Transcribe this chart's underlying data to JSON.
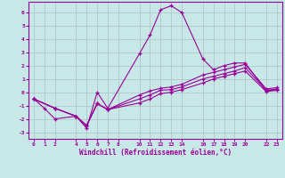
{
  "xlabel": "Windchill (Refroidissement éolien,°C)",
  "background_color": "#c8e8e8",
  "grid_color": "#b0c8c8",
  "line_color": "#990099",
  "xlim": [
    -0.5,
    23.5
  ],
  "ylim": [
    -3.5,
    6.8
  ],
  "xticks": [
    0,
    1,
    2,
    4,
    5,
    6,
    7,
    8,
    10,
    11,
    12,
    13,
    14,
    16,
    17,
    18,
    19,
    20,
    22,
    23
  ],
  "yticks": [
    -3,
    -2,
    -1,
    0,
    1,
    2,
    3,
    4,
    5,
    6
  ],
  "series": [
    {
      "x": [
        0,
        1,
        2,
        4,
        5,
        6,
        7,
        10,
        11,
        12,
        13,
        14,
        16,
        17,
        18,
        19,
        20,
        22,
        23
      ],
      "y": [
        -0.5,
        -1.2,
        -2.0,
        -1.8,
        -2.7,
        0.0,
        -1.2,
        2.9,
        4.3,
        6.2,
        6.5,
        6.0,
        2.5,
        1.7,
        2.0,
        2.2,
        2.2,
        0.1,
        0.2
      ]
    },
    {
      "x": [
        0,
        2,
        4,
        5,
        6,
        7,
        10,
        11,
        12,
        13,
        14,
        16,
        17,
        18,
        19,
        20,
        22,
        23
      ],
      "y": [
        -0.5,
        -1.2,
        -1.8,
        -2.5,
        -0.85,
        -1.3,
        -0.8,
        -0.5,
        -0.1,
        0.0,
        0.2,
        0.7,
        1.0,
        1.2,
        1.4,
        1.6,
        0.05,
        0.15
      ]
    },
    {
      "x": [
        0,
        2,
        4,
        5,
        6,
        7,
        10,
        11,
        12,
        13,
        14,
        16,
        17,
        18,
        19,
        20,
        22,
        23
      ],
      "y": [
        -0.5,
        -1.2,
        -1.8,
        -2.5,
        -0.85,
        -1.3,
        -0.5,
        -0.2,
        0.15,
        0.2,
        0.4,
        1.0,
        1.2,
        1.4,
        1.6,
        1.85,
        0.15,
        0.25
      ]
    },
    {
      "x": [
        0,
        2,
        4,
        5,
        6,
        7,
        10,
        11,
        12,
        13,
        14,
        16,
        17,
        18,
        19,
        20,
        22,
        23
      ],
      "y": [
        -0.5,
        -1.2,
        -1.8,
        -2.5,
        -0.85,
        -1.3,
        -0.2,
        0.1,
        0.3,
        0.4,
        0.6,
        1.3,
        1.5,
        1.7,
        1.9,
        2.1,
        0.25,
        0.35
      ]
    }
  ]
}
